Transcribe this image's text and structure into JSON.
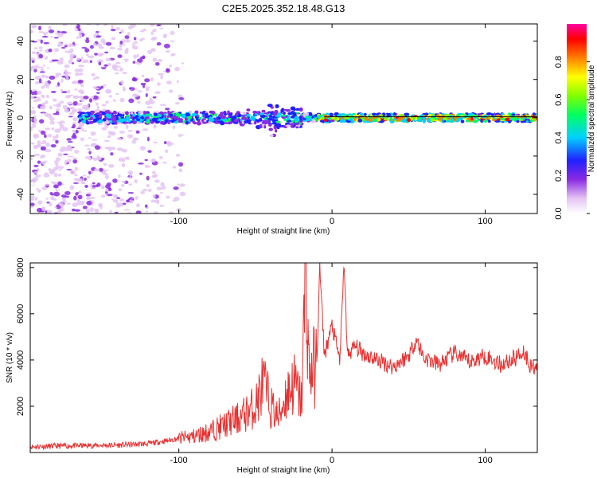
{
  "title": "C2E5.2025.352.18.48.G13",
  "chart_data": [
    {
      "type": "heatmap",
      "xlabel": "Height of straight line (km)",
      "ylabel": "Frequency (Hz)",
      "xlim": [
        -197,
        134
      ],
      "ylim": [
        -50,
        49
      ],
      "xticks": [
        -100,
        0,
        100
      ],
      "yticks": [
        -40,
        -20,
        0,
        20,
        40
      ],
      "colorbar": {
        "label": "Normalized spectral amplitude",
        "range": [
          0,
          1
        ],
        "ticks": [
          "0.0",
          "0.2",
          "0.4",
          "0.6",
          "0.8"
        ]
      },
      "line": {
        "x": [
          -5,
          134
        ],
        "y": 0.5
      },
      "grid": false
    },
    {
      "type": "line",
      "xlabel": "Height of straight line (km)",
      "ylabel": "SNR (10 * v/v)",
      "xlim": [
        -197,
        134
      ],
      "ylim": [
        0,
        8200
      ],
      "xticks": [
        -100,
        0,
        100
      ],
      "yticks": [
        2000,
        4000,
        6000,
        8000
      ],
      "color": "#e83030",
      "grid": false,
      "points": [
        [
          -197,
          250
        ],
        [
          -180,
          280
        ],
        [
          -160,
          300
        ],
        [
          -140,
          320
        ],
        [
          -120,
          380
        ],
        [
          -100,
          600
        ],
        [
          -90,
          700
        ],
        [
          -80,
          900
        ],
        [
          -70,
          1200
        ],
        [
          -60,
          1500
        ],
        [
          -50,
          2000
        ],
        [
          -45,
          3000
        ],
        [
          -40,
          2000
        ],
        [
          -35,
          1500
        ],
        [
          -30,
          2500
        ],
        [
          -25,
          3000
        ],
        [
          -20,
          2200
        ],
        [
          -17,
          7900
        ],
        [
          -15,
          3500
        ],
        [
          -10,
          3800
        ],
        [
          -8,
          8000
        ],
        [
          -5,
          4200
        ],
        [
          0,
          5500
        ],
        [
          5,
          4000
        ],
        [
          8,
          8200
        ],
        [
          10,
          4200
        ],
        [
          15,
          4600
        ],
        [
          20,
          4300
        ],
        [
          30,
          4000
        ],
        [
          40,
          3700
        ],
        [
          50,
          4200
        ],
        [
          55,
          4900
        ],
        [
          60,
          4100
        ],
        [
          70,
          3800
        ],
        [
          80,
          4300
        ],
        [
          90,
          3900
        ],
        [
          100,
          4200
        ],
        [
          110,
          3800
        ],
        [
          120,
          4100
        ],
        [
          125,
          4400
        ],
        [
          130,
          3700
        ],
        [
          134,
          3800
        ]
      ]
    }
  ]
}
